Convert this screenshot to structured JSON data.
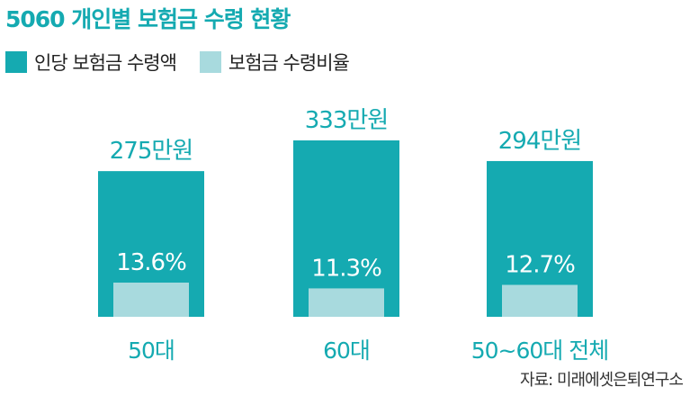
{
  "chart_data": {
    "type": "bar",
    "title": "5060 개인별 보험금 수령 현황",
    "categories": [
      "50대",
      "60대",
      "50~60대 전체"
    ],
    "series": [
      {
        "name": "인당 보험금 수령액",
        "values": [
          275,
          333,
          294
        ],
        "labels": [
          "275만원",
          "333만원",
          "294만원"
        ],
        "color": "#15aab1"
      },
      {
        "name": "보험금 수령비율",
        "values": [
          13.6,
          11.3,
          12.7
        ],
        "labels": [
          "13.6%",
          "11.3%",
          "12.7%"
        ],
        "color": "#a8dade"
      }
    ],
    "legend_position": "top-left",
    "grid": false
  },
  "source": "자료: 미래에셋은퇴연구소",
  "colors": {
    "title": "#15aab1",
    "dark_bar": "#15aab1",
    "light_bar": "#a8dade",
    "label_on_bar": "#ffffff"
  }
}
